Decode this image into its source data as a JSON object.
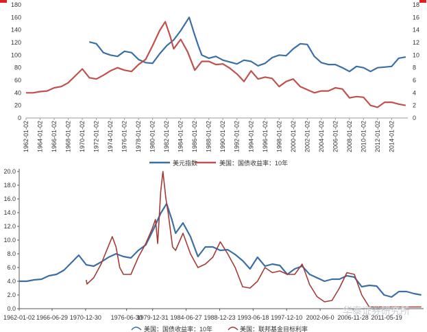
{
  "chart_data": [
    {
      "type": "line",
      "title": "",
      "xlabel": "",
      "ylabel": "",
      "ylim": [
        0,
        180
      ],
      "y2lim": [
        0,
        18
      ],
      "y_ticks": [
        "0",
        "20",
        "40",
        "60",
        "80",
        "100",
        "120",
        "140",
        "160",
        "180"
      ],
      "y2_ticks": [
        "0",
        "2",
        "4",
        "6",
        "8",
        "10",
        "12",
        "14",
        "16",
        "18"
      ],
      "x_range": [
        1962,
        2016.3
      ],
      "x_ticks": [
        "1962-01-02",
        "1964-01-02",
        "1966-01-02",
        "1968-01-02",
        "1970-01-02",
        "1972-01-02",
        "1974-01-02",
        "1976-01-02",
        "1978-01-02",
        "1980-01-02",
        "1982-01-02",
        "1984-01-02",
        "1986-01-02",
        "1988-01-02",
        "1990-01-02",
        "1992-01-02",
        "1994-01-02",
        "1996-01-02",
        "1998-01-02",
        "2000-01-02",
        "2002-01-02",
        "2004-01-02",
        "2006-01-02",
        "2008-01-02",
        "2010-01-02",
        "2012-01-02",
        "2014-01-02"
      ],
      "legend": [
        "美元指数",
        "美国：国债收益率：10年"
      ],
      "legend_position": "bottom",
      "series": [
        {
          "name": "美元指数",
          "axis": "left",
          "color": "#3c6ea6",
          "points": [
            [
              1971,
              121
            ],
            [
              1972,
              118
            ],
            [
              1973,
              104
            ],
            [
              1974,
              100
            ],
            [
              1975,
              98
            ],
            [
              1976,
              106
            ],
            [
              1977,
              104
            ],
            [
              1978,
              93
            ],
            [
              1979,
              88
            ],
            [
              1980,
              87
            ],
            [
              1981,
              102
            ],
            [
              1982,
              115
            ],
            [
              1983,
              124
            ],
            [
              1984,
              139
            ],
            [
              1985.2,
              160
            ],
            [
              1985.9,
              135
            ],
            [
              1986.5,
              115
            ],
            [
              1987,
              100
            ],
            [
              1988,
              95
            ],
            [
              1989,
              98
            ],
            [
              1990,
              92
            ],
            [
              1991,
              89
            ],
            [
              1992,
              86
            ],
            [
              1993,
              92
            ],
            [
              1994,
              90
            ],
            [
              1995,
              83
            ],
            [
              1996,
              87
            ],
            [
              1997,
              96
            ],
            [
              1998,
              100
            ],
            [
              1999,
              99
            ],
            [
              2000,
              110
            ],
            [
              2001,
              118
            ],
            [
              2002,
              117
            ],
            [
              2003,
              98
            ],
            [
              2004,
              88
            ],
            [
              2005,
              85
            ],
            [
              2006,
              85
            ],
            [
              2007,
              80
            ],
            [
              2008,
              74
            ],
            [
              2009,
              82
            ],
            [
              2010,
              80
            ],
            [
              2011,
              74
            ],
            [
              2012,
              80
            ],
            [
              2013,
              81
            ],
            [
              2014,
              82
            ],
            [
              2015,
              95
            ],
            [
              2016,
              97
            ]
          ]
        },
        {
          "name": "美国：国债收益率：10年",
          "axis": "right",
          "color": "#c0504d",
          "points": [
            [
              1962,
              4.0
            ],
            [
              1963,
              4.0
            ],
            [
              1964,
              4.2
            ],
            [
              1965,
              4.3
            ],
            [
              1966,
              4.8
            ],
            [
              1967,
              5.0
            ],
            [
              1968,
              5.6
            ],
            [
              1969,
              6.7
            ],
            [
              1970,
              7.8
            ],
            [
              1971,
              6.4
            ],
            [
              1972,
              6.2
            ],
            [
              1973,
              6.8
            ],
            [
              1974,
              7.5
            ],
            [
              1975,
              8.0
            ],
            [
              1976,
              7.6
            ],
            [
              1977,
              7.4
            ],
            [
              1978,
              8.5
            ],
            [
              1979,
              9.3
            ],
            [
              1980,
              11.5
            ],
            [
              1981,
              13.9
            ],
            [
              1981.8,
              15.3
            ],
            [
              1982.5,
              13.0
            ],
            [
              1983,
              11.0
            ],
            [
              1984,
              12.5
            ],
            [
              1985,
              10.5
            ],
            [
              1986,
              7.6
            ],
            [
              1987,
              9.0
            ],
            [
              1988,
              9.0
            ],
            [
              1989,
              8.5
            ],
            [
              1990,
              8.6
            ],
            [
              1991,
              7.9
            ],
            [
              1992,
              7.0
            ],
            [
              1993,
              5.8
            ],
            [
              1994,
              7.5
            ],
            [
              1995,
              6.2
            ],
            [
              1996,
              6.5
            ],
            [
              1997,
              6.3
            ],
            [
              1998,
              5.0
            ],
            [
              1999,
              5.8
            ],
            [
              2000,
              6.2
            ],
            [
              2001,
              5.0
            ],
            [
              2002,
              4.5
            ],
            [
              2003,
              4.0
            ],
            [
              2004,
              4.3
            ],
            [
              2005,
              4.3
            ],
            [
              2006,
              4.8
            ],
            [
              2007,
              4.6
            ],
            [
              2008,
              3.2
            ],
            [
              2009,
              3.4
            ],
            [
              2010,
              3.3
            ],
            [
              2011,
              2.0
            ],
            [
              2012,
              1.7
            ],
            [
              2013,
              2.5
            ],
            [
              2014,
              2.5
            ],
            [
              2015,
              2.2
            ],
            [
              2016,
              2.0
            ]
          ]
        }
      ]
    },
    {
      "type": "line",
      "title": "",
      "xlabel": "",
      "ylabel": "",
      "ylim": [
        0,
        20
      ],
      "y_ticks": [
        "0.0",
        "2.0",
        "4.0",
        "6.0",
        "8.0",
        "10.0",
        "12.0",
        "14.0",
        "16.0",
        "18.0",
        "20.0"
      ],
      "x_range": [
        1962,
        2016.3
      ],
      "x_ticks": [
        "1962-01-02",
        "1966-06-29",
        "1970-12-30",
        "1976-06-30",
        "1979-12-31",
        "1984-06-27",
        "1988-12-23",
        "1993-06-18",
        "1997-12-10",
        "2002-06-0",
        "2006-11-28",
        "2011-05-19"
      ],
      "legend": [
        "美国：国债收益率：10年",
        "美国：联邦基金目标利率"
      ],
      "legend_position": "bottom",
      "series": [
        {
          "name": "美国：国债收益率：10年",
          "color": "#3c6ea6",
          "points": [
            [
              1962,
              4.0
            ],
            [
              1963,
              4.0
            ],
            [
              1964,
              4.2
            ],
            [
              1965,
              4.3
            ],
            [
              1966,
              4.8
            ],
            [
              1967,
              5.0
            ],
            [
              1968,
              5.6
            ],
            [
              1969,
              6.7
            ],
            [
              1970,
              7.8
            ],
            [
              1971,
              6.4
            ],
            [
              1972,
              6.2
            ],
            [
              1973,
              6.8
            ],
            [
              1974,
              7.5
            ],
            [
              1975,
              8.0
            ],
            [
              1976,
              7.6
            ],
            [
              1977,
              7.4
            ],
            [
              1978,
              8.5
            ],
            [
              1979,
              9.3
            ],
            [
              1980,
              11.5
            ],
            [
              1981,
              13.9
            ],
            [
              1981.8,
              15.3
            ],
            [
              1982.5,
              13.0
            ],
            [
              1983,
              11.0
            ],
            [
              1984,
              12.5
            ],
            [
              1985,
              10.5
            ],
            [
              1986,
              7.6
            ],
            [
              1987,
              9.0
            ],
            [
              1988,
              9.0
            ],
            [
              1989,
              8.5
            ],
            [
              1990,
              8.6
            ],
            [
              1991,
              7.9
            ],
            [
              1992,
              7.0
            ],
            [
              1993,
              5.8
            ],
            [
              1994,
              7.5
            ],
            [
              1995,
              6.2
            ],
            [
              1996,
              6.5
            ],
            [
              1997,
              6.3
            ],
            [
              1998,
              5.0
            ],
            [
              1999,
              5.8
            ],
            [
              2000,
              6.2
            ],
            [
              2001,
              5.0
            ],
            [
              2002,
              4.5
            ],
            [
              2003,
              4.0
            ],
            [
              2004,
              4.3
            ],
            [
              2005,
              4.3
            ],
            [
              2006,
              4.8
            ],
            [
              2007,
              4.6
            ],
            [
              2008,
              3.2
            ],
            [
              2009,
              3.4
            ],
            [
              2010,
              3.3
            ],
            [
              2011,
              2.0
            ],
            [
              2012,
              1.7
            ],
            [
              2013,
              2.5
            ],
            [
              2014,
              2.5
            ],
            [
              2015,
              2.2
            ],
            [
              2016,
              2.0
            ]
          ]
        },
        {
          "name": "美国：联邦基金目标利率",
          "color": "#a33a36",
          "points": [
            [
              1971,
              4.2
            ],
            [
              1971.1,
              3.6
            ],
            [
              1972,
              4.5
            ],
            [
              1973,
              6.5
            ],
            [
              1974.5,
              10.5
            ],
            [
              1975,
              9.0
            ],
            [
              1975.5,
              6.0
            ],
            [
              1976,
              5.0
            ],
            [
              1977,
              5.0
            ],
            [
              1978,
              7.5
            ],
            [
              1979,
              9.5
            ],
            [
              1979.8,
              11.5
            ],
            [
              1980.3,
              13.0
            ],
            [
              1980.6,
              9.5
            ],
            [
              1981,
              17.0
            ],
            [
              1981.3,
              20.0
            ],
            [
              1981.7,
              16.0
            ],
            [
              1982,
              14.0
            ],
            [
              1982.6,
              9.0
            ],
            [
              1983,
              8.5
            ],
            [
              1984,
              11.0
            ],
            [
              1985,
              8.0
            ],
            [
              1986,
              6.0
            ],
            [
              1987,
              6.5
            ],
            [
              1988,
              7.5
            ],
            [
              1989,
              9.75
            ],
            [
              1990,
              8.0
            ],
            [
              1991,
              6.0
            ],
            [
              1992,
              3.2
            ],
            [
              1993,
              3.0
            ],
            [
              1994,
              4.0
            ],
            [
              1995,
              6.0
            ],
            [
              1996,
              5.25
            ],
            [
              1997,
              5.5
            ],
            [
              1998,
              5.0
            ],
            [
              1999,
              5.0
            ],
            [
              2000,
              6.5
            ],
            [
              2001,
              3.5
            ],
            [
              2002,
              1.75
            ],
            [
              2003,
              1.0
            ],
            [
              2004,
              1.2
            ],
            [
              2005,
              3.0
            ],
            [
              2006,
              5.25
            ],
            [
              2007,
              5.0
            ],
            [
              2008,
              2.0
            ],
            [
              2009,
              0.25
            ],
            [
              2016,
              0.25
            ]
          ]
        }
      ]
    }
  ],
  "watermark": "华泰证券研究所",
  "accent_color": "#e02020"
}
